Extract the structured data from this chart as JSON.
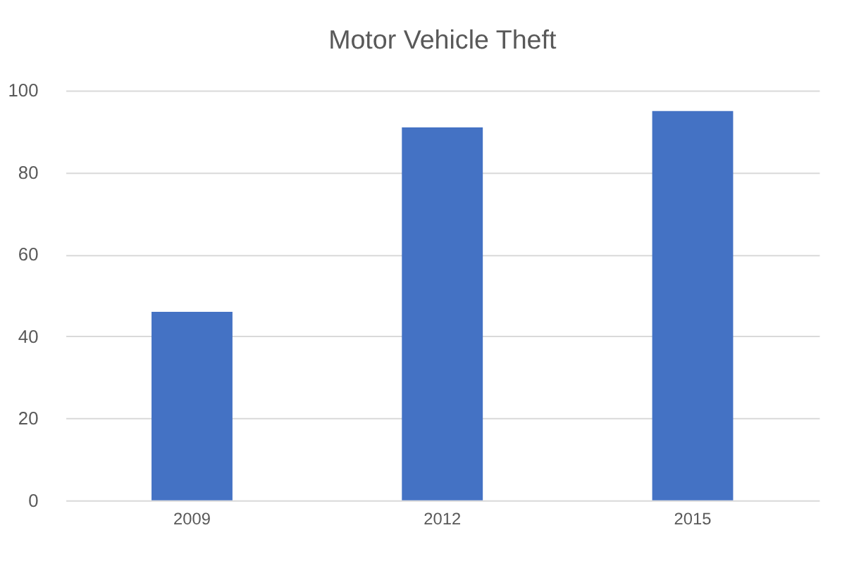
{
  "chart_data": {
    "type": "bar",
    "title": "Motor Vehicle Theft",
    "categories": [
      "2009",
      "2012",
      "2015"
    ],
    "values": [
      46,
      91,
      95
    ],
    "color": "#4472c4",
    "ylim": [
      0,
      100
    ],
    "yticks": [
      0,
      20,
      40,
      60,
      80,
      100
    ],
    "grid": "y"
  }
}
